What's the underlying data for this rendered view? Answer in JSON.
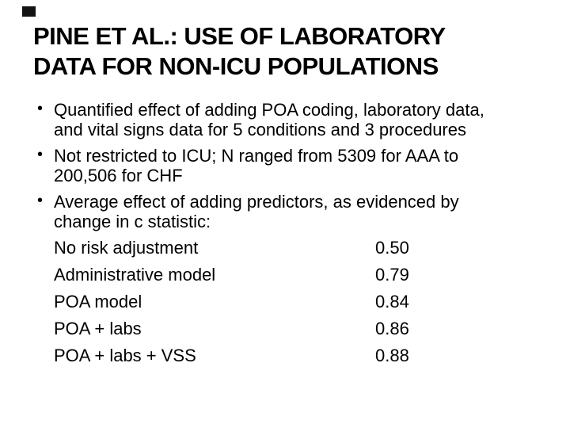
{
  "slide": {
    "background_color": "#ffffff",
    "text_color": "#000000",
    "corner_square_color": "#141414",
    "bullet_char": "•",
    "title": {
      "line1": "PINE ET AL.: USE OF LABORATORY",
      "line2": "DATA FOR NON-ICU POPULATIONS"
    },
    "bullets": [
      {
        "lines": [
          "Quantified effect of adding POA coding, laboratory data,",
          "and vital signs data for 5 conditions and 3 procedures"
        ]
      },
      {
        "lines": [
          "Not restricted to ICU; N ranged from 5309 for AAA to",
          "200,506 for CHF"
        ]
      },
      {
        "lines": [
          "Average effect of adding predictors, as evidenced by",
          "change in c statistic:"
        ]
      }
    ],
    "c_statistics": {
      "rows": [
        {
          "label": "No risk adjustment",
          "value": "0.50"
        },
        {
          "label": "Administrative model",
          "value": "0.79"
        },
        {
          "label": "POA model",
          "value": "0.84"
        },
        {
          "label": "POA + labs",
          "value": "0.86"
        },
        {
          "label": "POA + labs + VSS",
          "value": "0.88"
        }
      ]
    }
  }
}
